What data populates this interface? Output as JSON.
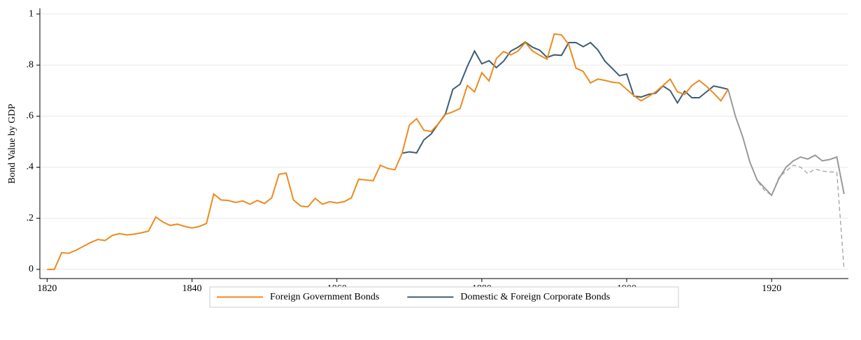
{
  "chart_data": {
    "type": "line",
    "y_label": "Bond Value by GDP",
    "x": [
      1820,
      1821,
      1822,
      1823,
      1824,
      1825,
      1826,
      1827,
      1828,
      1829,
      1830,
      1831,
      1832,
      1833,
      1834,
      1835,
      1836,
      1837,
      1838,
      1839,
      1840,
      1841,
      1842,
      1843,
      1844,
      1845,
      1846,
      1847,
      1848,
      1849,
      1850,
      1851,
      1852,
      1853,
      1854,
      1855,
      1856,
      1857,
      1858,
      1859,
      1860,
      1861,
      1862,
      1863,
      1864,
      1865,
      1866,
      1867,
      1868,
      1869,
      1870,
      1871,
      1872,
      1873,
      1874,
      1875,
      1876,
      1877,
      1878,
      1879,
      1880,
      1881,
      1882,
      1883,
      1884,
      1885,
      1886,
      1887,
      1888,
      1889,
      1890,
      1891,
      1892,
      1893,
      1894,
      1895,
      1896,
      1897,
      1898,
      1899,
      1900,
      1901,
      1902,
      1903,
      1904,
      1905,
      1906,
      1907,
      1908,
      1909,
      1910,
      1911,
      1912,
      1913,
      1914,
      1915,
      1916,
      1917,
      1918,
      1919,
      1920,
      1921,
      1922,
      1923,
      1924,
      1925,
      1926,
      1927,
      1928,
      1929,
      1930
    ],
    "series": [
      {
        "name": "Foreign Government Bonds",
        "color": "#ee8a1e",
        "values": [
          0,
          0,
          0.065,
          0.063,
          0.075,
          0.09,
          0.105,
          0.117,
          0.113,
          0.133,
          0.14,
          0.135,
          0.138,
          0.143,
          0.15,
          0.205,
          0.185,
          0.172,
          0.177,
          0.168,
          0.162,
          0.168,
          0.18,
          0.295,
          0.272,
          0.27,
          0.262,
          0.268,
          0.255,
          0.27,
          0.258,
          0.28,
          0.372,
          0.377,
          0.272,
          0.248,
          0.245,
          0.278,
          0.255,
          0.265,
          0.26,
          0.265,
          0.28,
          0.353,
          0.35,
          0.347,
          0.408,
          0.395,
          0.39,
          0.455,
          0.565,
          0.59,
          0.545,
          0.54,
          0.57,
          0.607,
          0.617,
          0.63,
          0.72,
          0.695,
          0.77,
          0.738,
          0.825,
          0.853,
          0.84,
          0.855,
          0.888,
          0.855,
          0.838,
          0.823,
          0.922,
          0.918,
          0.88,
          0.788,
          0.775,
          0.73,
          0.745,
          0.74,
          0.733,
          0.73,
          0.705,
          0.68,
          0.66,
          0.677,
          0.695,
          0.72,
          0.745,
          0.695,
          0.685,
          0.72,
          0.74,
          0.717,
          0.69,
          0.66,
          0.705,
          null,
          null,
          null,
          null,
          null,
          null,
          null,
          null,
          null,
          null,
          null,
          null,
          null,
          null,
          null,
          null
        ]
      },
      {
        "name": "Domestic & Foreign Corporate Bonds",
        "color": "#3d5d74",
        "values": [
          null,
          null,
          null,
          null,
          null,
          null,
          null,
          null,
          null,
          null,
          null,
          null,
          null,
          null,
          null,
          null,
          null,
          null,
          null,
          null,
          null,
          null,
          null,
          null,
          null,
          null,
          null,
          null,
          null,
          null,
          null,
          null,
          null,
          null,
          null,
          null,
          null,
          null,
          null,
          null,
          null,
          null,
          null,
          null,
          null,
          null,
          null,
          null,
          null,
          0.455,
          0.46,
          0.456,
          0.507,
          0.53,
          0.57,
          0.61,
          0.705,
          0.725,
          0.795,
          0.855,
          0.805,
          0.817,
          0.79,
          0.815,
          0.855,
          0.87,
          0.89,
          0.87,
          0.858,
          0.83,
          0.84,
          0.838,
          0.888,
          0.888,
          0.872,
          0.888,
          0.86,
          0.815,
          0.787,
          0.758,
          0.765,
          0.678,
          0.675,
          0.685,
          0.69,
          0.718,
          0.7,
          0.652,
          0.698,
          0.672,
          0.672,
          0.695,
          0.718,
          0.712,
          0.705,
          null,
          null,
          null,
          null,
          null,
          null,
          null,
          null,
          null,
          null,
          null,
          null,
          null,
          null,
          null,
          null
        ]
      },
      {
        "color": "#999999",
        "values": [
          null,
          null,
          null,
          null,
          null,
          null,
          null,
          null,
          null,
          null,
          null,
          null,
          null,
          null,
          null,
          null,
          null,
          null,
          null,
          null,
          null,
          null,
          null,
          null,
          null,
          null,
          null,
          null,
          null,
          null,
          null,
          null,
          null,
          null,
          null,
          null,
          null,
          null,
          null,
          null,
          null,
          null,
          null,
          null,
          null,
          null,
          null,
          null,
          null,
          null,
          null,
          null,
          null,
          null,
          null,
          null,
          null,
          null,
          null,
          null,
          null,
          null,
          null,
          null,
          null,
          null,
          null,
          null,
          null,
          null,
          null,
          null,
          null,
          null,
          null,
          null,
          null,
          null,
          null,
          null,
          null,
          null,
          null,
          null,
          null,
          null,
          null,
          null,
          null,
          null,
          null,
          null,
          null,
          null,
          0.705,
          0.6,
          0.52,
          0.42,
          0.35,
          0.32,
          0.29,
          0.355,
          0.4,
          0.425,
          0.44,
          0.432,
          0.447,
          0.425,
          0.43,
          0.44,
          0.295
        ]
      },
      {
        "color": "#999999",
        "dash": true,
        "values": [
          null,
          null,
          null,
          null,
          null,
          null,
          null,
          null,
          null,
          null,
          null,
          null,
          null,
          null,
          null,
          null,
          null,
          null,
          null,
          null,
          null,
          null,
          null,
          null,
          null,
          null,
          null,
          null,
          null,
          null,
          null,
          null,
          null,
          null,
          null,
          null,
          null,
          null,
          null,
          null,
          null,
          null,
          null,
          null,
          null,
          null,
          null,
          null,
          null,
          null,
          null,
          null,
          null,
          null,
          null,
          null,
          null,
          null,
          null,
          null,
          null,
          null,
          null,
          null,
          null,
          null,
          null,
          null,
          null,
          null,
          null,
          null,
          null,
          null,
          null,
          null,
          null,
          null,
          null,
          null,
          null,
          null,
          null,
          null,
          null,
          null,
          null,
          null,
          null,
          null,
          null,
          null,
          null,
          null,
          0.705,
          0.6,
          0.52,
          0.42,
          0.348,
          0.31,
          0.29,
          0.36,
          0.385,
          0.408,
          0.4,
          0.375,
          0.393,
          0.385,
          0.382,
          0.38,
          0
        ]
      }
    ],
    "xlim": [
      1819,
      1930.6
    ],
    "xticks": [
      1820,
      1840,
      1860,
      1880,
      1900,
      1920
    ],
    "ylim": [
      -0.036,
      1.022
    ],
    "yticks": [
      0,
      {
        "value": 0.2,
        "label": ".2"
      },
      {
        "value": 0.4,
        "label": ".4"
      },
      {
        "value": 0.6,
        "label": ".6"
      },
      {
        "value": 0.8,
        "label": ".8"
      },
      1
    ],
    "grid": true,
    "legend": "bottom"
  }
}
